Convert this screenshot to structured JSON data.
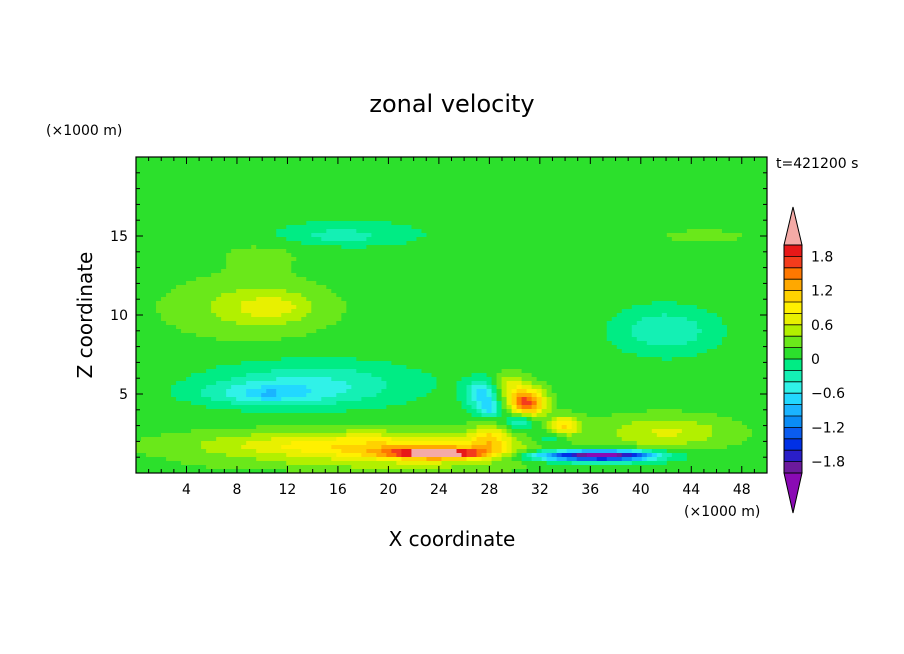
{
  "chart_data": {
    "type": "heatmap",
    "title": "zonal velocity",
    "xlabel": "X coordinate",
    "ylabel": "Z coordinate",
    "x_unit": "(×1000 m)",
    "y_unit": "(×1000 m)",
    "time_label": "t=421200 s",
    "xlim": [
      0,
      50
    ],
    "ylim": [
      0,
      20
    ],
    "x_ticks": [
      4,
      8,
      12,
      16,
      20,
      24,
      28,
      32,
      36,
      40,
      44,
      48
    ],
    "y_ticks": [
      5,
      10,
      15
    ],
    "colorbar": {
      "levels": [
        -2.0,
        -1.8,
        -1.6,
        -1.4,
        -1.2,
        -1.0,
        -0.8,
        -0.6,
        -0.4,
        -0.2,
        0.0,
        0.2,
        0.4,
        0.6,
        0.8,
        1.0,
        1.2,
        1.4,
        1.6,
        1.8
      ],
      "tick_labels": [
        "1.8",
        "1.2",
        "0.6",
        "0",
        "−0.6",
        "−1.2",
        "−1.8"
      ],
      "tick_values": [
        1.8,
        1.2,
        0.6,
        0,
        -0.6,
        -1.2,
        -1.8
      ],
      "colors": [
        "#6c1a9c",
        "#2a1ec8",
        "#0030e6",
        "#0a5cf0",
        "#0a8cf5",
        "#1ab4ff",
        "#22d8ff",
        "#30f2e8",
        "#14f0b4",
        "#00ec84",
        "#2ce02c",
        "#6ae81a",
        "#b2f000",
        "#e8f000",
        "#fff000",
        "#ffd200",
        "#ffa800",
        "#ff7800",
        "#f43c1c",
        "#e81818"
      ],
      "under_color": "#8a0ab4",
      "over_color": "#f4aaa6"
    },
    "features": [
      {
        "x": 25,
        "z": 16,
        "sx": 40,
        "sz": 2.4,
        "value": -0.1
      },
      {
        "x": 16,
        "z": 15,
        "sx": 4.5,
        "sz": 0.6,
        "value": -0.35
      },
      {
        "x": 10,
        "z": 14,
        "sx": 5,
        "sz": 1.2,
        "value": 0.15
      },
      {
        "x": 45,
        "z": 15,
        "sx": 4,
        "sz": 0.5,
        "value": 0.25
      },
      {
        "x": 9,
        "z": 10.5,
        "sx": 6,
        "sz": 1.8,
        "value": 0.35
      },
      {
        "x": 11,
        "z": 10.5,
        "sx": 3,
        "sz": 0.9,
        "value": 0.3
      },
      {
        "x": 42,
        "z": 9,
        "sx": 4,
        "sz": 1.5,
        "value": -0.5
      },
      {
        "x": 14,
        "z": 5.6,
        "sx": 8,
        "sz": 1.4,
        "value": -0.55
      },
      {
        "x": 10,
        "z": 5.0,
        "sx": 5,
        "sz": 0.7,
        "value": -0.45
      },
      {
        "x": 10.5,
        "z": 4.9,
        "sx": 0.8,
        "sz": 0.3,
        "value": -0.3
      },
      {
        "x": 27.5,
        "z": 5.0,
        "sx": 1.3,
        "sz": 0.9,
        "value": -0.9
      },
      {
        "x": 28,
        "z": 4.0,
        "sx": 0.9,
        "sz": 0.5,
        "value": -0.6
      },
      {
        "x": 31,
        "z": 4.4,
        "sx": 1.4,
        "sz": 0.9,
        "value": 1.6
      },
      {
        "x": 29.5,
        "z": 5.5,
        "sx": 1.5,
        "sz": 0.8,
        "value": 0.5
      },
      {
        "x": 34,
        "z": 3.0,
        "sx": 1.2,
        "sz": 0.6,
        "value": 0.9
      },
      {
        "x": 30.5,
        "z": 3.3,
        "sx": 1.2,
        "sz": 0.6,
        "value": -0.7
      },
      {
        "x": 33,
        "z": 2.2,
        "sx": 1.5,
        "sz": 0.5,
        "value": -0.4
      },
      {
        "x": 42,
        "z": 2.6,
        "sx": 5,
        "sz": 1.0,
        "value": 0.5
      },
      {
        "x": 18,
        "z": 1.7,
        "sx": 12,
        "sz": 0.9,
        "value": 0.9
      },
      {
        "x": 24,
        "z": 1.25,
        "sx": 5,
        "sz": 0.4,
        "value": 1.2
      },
      {
        "x": 24,
        "z": 1.2,
        "sx": 3,
        "sz": 0.25,
        "value": 0.8
      },
      {
        "x": 28,
        "z": 2.2,
        "sx": 1.5,
        "sz": 0.8,
        "value": 0.7
      },
      {
        "x": 36,
        "z": 1.1,
        "sx": 5,
        "sz": 0.35,
        "value": -1.9
      },
      {
        "x": 38,
        "z": 1.1,
        "sx": 3,
        "sz": 0.3,
        "value": -0.6
      },
      {
        "x": 25,
        "z": 0.5,
        "sx": 15,
        "sz": 0.4,
        "value": 0.25
      },
      {
        "x": 36,
        "z": 0.5,
        "sx": 8,
        "sz": 0.3,
        "value": -0.25
      }
    ]
  }
}
